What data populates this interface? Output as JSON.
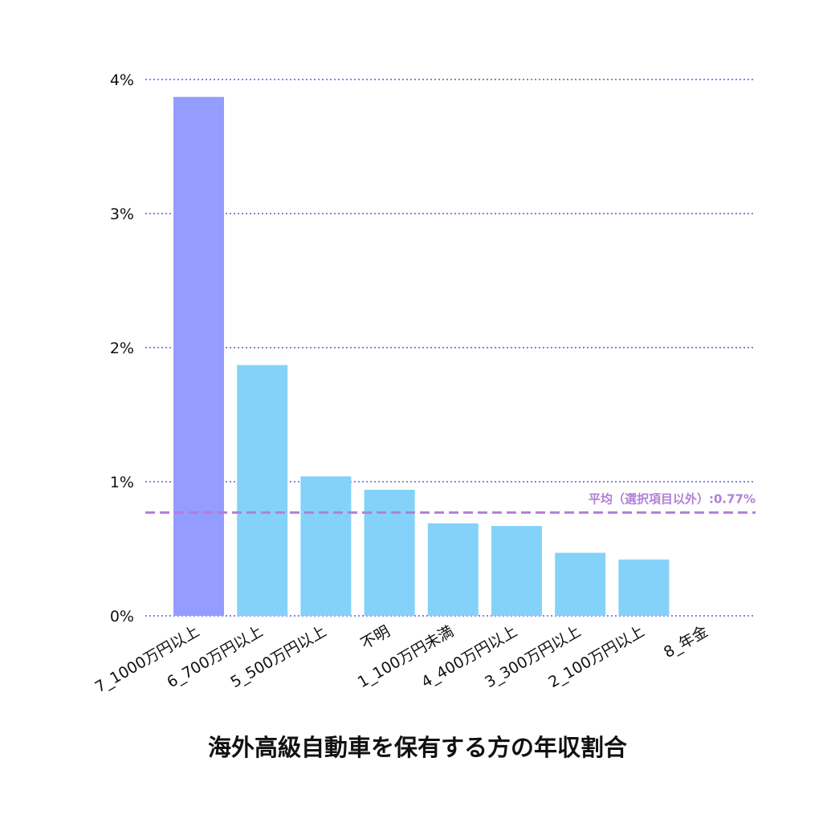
{
  "chart_data": {
    "type": "bar",
    "title": "海外高級自動車を保有する方の年収割合",
    "xlabel": "",
    "ylabel": "",
    "ylim": [
      0,
      4
    ],
    "yticks": [
      "0%",
      "1%",
      "2%",
      "3%",
      "4%"
    ],
    "grid": true,
    "categories": [
      "7_1000万円以上",
      "6_700万円以上",
      "5_500万円以上",
      "不明",
      "1_100万円未満",
      "4_400万円以上",
      "3_300万円以上",
      "2_100万円以上",
      "8_年金"
    ],
    "values": [
      3.87,
      1.87,
      1.04,
      0.94,
      0.69,
      0.67,
      0.47,
      0.42,
      0
    ],
    "highlight_index": 0,
    "average": {
      "value": 0.77,
      "label": "平均（選択項目以外）:0.77%"
    }
  },
  "colors": {
    "highlight_bar": "#959cff",
    "bar": "#84d2f9",
    "grid": "#5b5be0",
    "average_line": "#b27fd6",
    "axis_text": "#111111"
  }
}
